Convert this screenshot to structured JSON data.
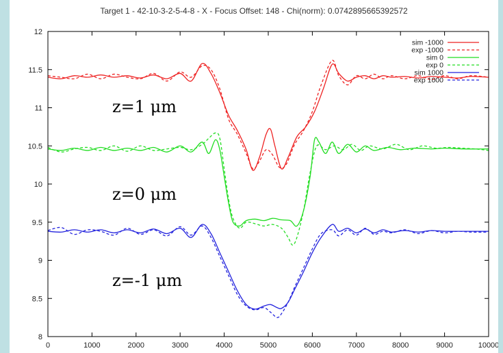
{
  "colors": {
    "background": "#bfe0e3",
    "red": "#ee2222",
    "green": "#22dd22",
    "blue": "#2222dd"
  },
  "chart_data": {
    "type": "line",
    "title": "Target 1 - 42-10-3-2-5-4-8 - X - Focus Offset: 148 - Chi(norm): 0.0742895665392572",
    "xlabel": "",
    "ylabel": "",
    "xlim": [
      0,
      10000
    ],
    "ylim": [
      8,
      12
    ],
    "xticks": [
      "0",
      "1000",
      "2000",
      "3000",
      "4000",
      "5000",
      "6000",
      "7000",
      "8000",
      "9000",
      "10000"
    ],
    "yticks": [
      "8",
      "8.5",
      "9",
      "9.5",
      "10",
      "10.5",
      "11",
      "11.5",
      "12"
    ],
    "grid": false,
    "legend_position": "top-right",
    "annotations": [
      "z=1 μm",
      "z=0 μm",
      "z=-1 μm"
    ],
    "series": [
      {
        "name": "sim -1000",
        "color": "#ee2222",
        "dash": "solid",
        "x": [
          0,
          300,
          600,
          900,
          1200,
          1500,
          1800,
          2100,
          2400,
          2700,
          3000,
          3250,
          3500,
          3700,
          3900,
          4100,
          4300,
          4500,
          4650,
          4800,
          4950,
          5050,
          5150,
          5300,
          5450,
          5650,
          5850,
          6050,
          6250,
          6450,
          6600,
          6800,
          7000,
          7200,
          7400,
          7600,
          7800,
          8100,
          8400,
          8700,
          9000,
          9300,
          9600,
          10000
        ],
        "y": [
          11.4,
          11.38,
          11.42,
          11.4,
          11.43,
          11.4,
          11.42,
          11.39,
          11.43,
          11.38,
          11.45,
          11.35,
          11.58,
          11.45,
          11.2,
          10.9,
          10.7,
          10.45,
          10.18,
          10.35,
          10.65,
          10.72,
          10.5,
          10.2,
          10.35,
          10.62,
          10.75,
          10.95,
          11.25,
          11.57,
          11.45,
          11.35,
          11.4,
          11.42,
          11.38,
          11.42,
          11.4,
          11.41,
          11.39,
          11.41,
          11.4,
          11.39,
          11.41,
          11.4
        ]
      },
      {
        "name": "exp -1000",
        "color": "#ee2222",
        "dash": "dashed",
        "x": [
          0,
          300,
          600,
          900,
          1200,
          1500,
          1800,
          2100,
          2400,
          2700,
          3000,
          3250,
          3500,
          3700,
          3900,
          4100,
          4300,
          4500,
          4650,
          4800,
          4950,
          5100,
          5250,
          5400,
          5600,
          5800,
          6000,
          6200,
          6450,
          6600,
          6800,
          7000,
          7200,
          7400,
          7600,
          7800,
          8100,
          8400,
          8700,
          9000,
          9300,
          9600,
          10000
        ],
        "y": [
          11.42,
          11.4,
          11.38,
          11.44,
          11.38,
          11.44,
          11.4,
          11.38,
          11.45,
          11.35,
          11.47,
          11.4,
          11.55,
          11.5,
          11.25,
          10.85,
          10.65,
          10.4,
          10.2,
          10.3,
          10.45,
          10.38,
          10.22,
          10.25,
          10.52,
          10.7,
          10.95,
          11.3,
          11.62,
          11.42,
          11.3,
          11.42,
          11.38,
          11.44,
          11.38,
          11.42,
          11.38,
          11.42,
          11.37,
          11.42,
          11.38,
          11.42,
          11.4
        ]
      },
      {
        "name": "sim 0",
        "color": "#22dd22",
        "dash": "solid",
        "x": [
          0,
          300,
          600,
          900,
          1200,
          1500,
          1800,
          2100,
          2400,
          2700,
          3000,
          3250,
          3500,
          3650,
          3800,
          3900,
          4000,
          4100,
          4200,
          4350,
          4500,
          4700,
          4900,
          5100,
          5300,
          5500,
          5650,
          5800,
          5950,
          6050,
          6150,
          6300,
          6450,
          6600,
          6800,
          7000,
          7200,
          7400,
          7700,
          8000,
          8300,
          8700,
          9000,
          9400,
          10000
        ],
        "y": [
          10.46,
          10.44,
          10.47,
          10.44,
          10.48,
          10.44,
          10.47,
          10.44,
          10.48,
          10.42,
          10.5,
          10.42,
          10.55,
          10.4,
          10.58,
          10.45,
          10.1,
          9.75,
          9.5,
          9.45,
          9.52,
          9.54,
          9.52,
          9.55,
          9.53,
          9.52,
          9.45,
          9.65,
          10.1,
          10.58,
          10.55,
          10.4,
          10.55,
          10.4,
          10.52,
          10.42,
          10.5,
          10.44,
          10.48,
          10.45,
          10.47,
          10.46,
          10.47,
          10.46,
          10.46
        ]
      },
      {
        "name": "exp 0",
        "color": "#22dd22",
        "dash": "dashed",
        "x": [
          0,
          300,
          600,
          900,
          1200,
          1500,
          1800,
          2100,
          2400,
          2700,
          3000,
          3250,
          3500,
          3650,
          3800,
          3900,
          4000,
          4100,
          4200,
          4350,
          4500,
          4700,
          4900,
          5100,
          5300,
          5450,
          5550,
          5650,
          5800,
          5950,
          6100,
          6300,
          6500,
          6700,
          6900,
          7100,
          7300,
          7600,
          7900,
          8200,
          8500,
          8800,
          9100,
          9400,
          9700,
          10000
        ],
        "y": [
          10.48,
          10.42,
          10.46,
          10.48,
          10.44,
          10.5,
          10.43,
          10.5,
          10.44,
          10.46,
          10.48,
          10.45,
          10.52,
          10.6,
          10.67,
          10.6,
          10.2,
          9.8,
          9.55,
          9.42,
          9.5,
          9.48,
          9.45,
          9.47,
          9.42,
          9.3,
          9.2,
          9.3,
          9.65,
          10.15,
          10.5,
          10.45,
          10.5,
          10.45,
          10.52,
          10.44,
          10.5,
          10.46,
          10.52,
          10.45,
          10.5,
          10.47,
          10.48,
          10.47,
          10.46,
          10.44
        ]
      },
      {
        "name": "sim 1000",
        "color": "#2222dd",
        "dash": "solid",
        "x": [
          0,
          300,
          600,
          900,
          1200,
          1500,
          1800,
          2100,
          2400,
          2700,
          3000,
          3250,
          3500,
          3700,
          3900,
          4100,
          4300,
          4500,
          4700,
          4900,
          5050,
          5200,
          5300,
          5450,
          5600,
          5800,
          6000,
          6200,
          6450,
          6600,
          6800,
          7000,
          7200,
          7400,
          7600,
          7800,
          8100,
          8400,
          8700,
          9000,
          9300,
          9600,
          10000
        ],
        "y": [
          9.38,
          9.37,
          9.4,
          9.37,
          9.4,
          9.36,
          9.4,
          9.36,
          9.41,
          9.35,
          9.42,
          9.3,
          9.47,
          9.35,
          9.1,
          8.85,
          8.6,
          8.42,
          8.36,
          8.4,
          8.42,
          8.38,
          8.37,
          8.45,
          8.62,
          8.85,
          9.1,
          9.3,
          9.47,
          9.38,
          9.42,
          9.36,
          9.41,
          9.36,
          9.4,
          9.37,
          9.39,
          9.37,
          9.39,
          9.38,
          9.38,
          9.38,
          9.38
        ]
      },
      {
        "name": "exp 1000",
        "color": "#2222dd",
        "dash": "dashed",
        "x": [
          0,
          300,
          600,
          900,
          1200,
          1500,
          1800,
          2100,
          2400,
          2700,
          3000,
          3250,
          3500,
          3700,
          3900,
          4100,
          4300,
          4500,
          4700,
          4900,
          5050,
          5200,
          5300,
          5450,
          5600,
          5800,
          6000,
          6200,
          6450,
          6600,
          6800,
          7000,
          7200,
          7400,
          7600,
          7800,
          8100,
          8400,
          8700,
          9000,
          9300,
          9600,
          10000
        ],
        "y": [
          9.39,
          9.43,
          9.34,
          9.4,
          9.38,
          9.33,
          9.42,
          9.34,
          9.4,
          9.32,
          9.44,
          9.33,
          9.45,
          9.3,
          9.05,
          8.8,
          8.55,
          8.4,
          8.35,
          8.38,
          8.32,
          8.25,
          8.3,
          8.45,
          8.65,
          8.9,
          9.15,
          9.35,
          9.4,
          9.32,
          9.4,
          9.33,
          9.42,
          9.34,
          9.38,
          9.36,
          9.4,
          9.35,
          9.39,
          9.36,
          9.38,
          9.37,
          9.37
        ]
      }
    ]
  }
}
